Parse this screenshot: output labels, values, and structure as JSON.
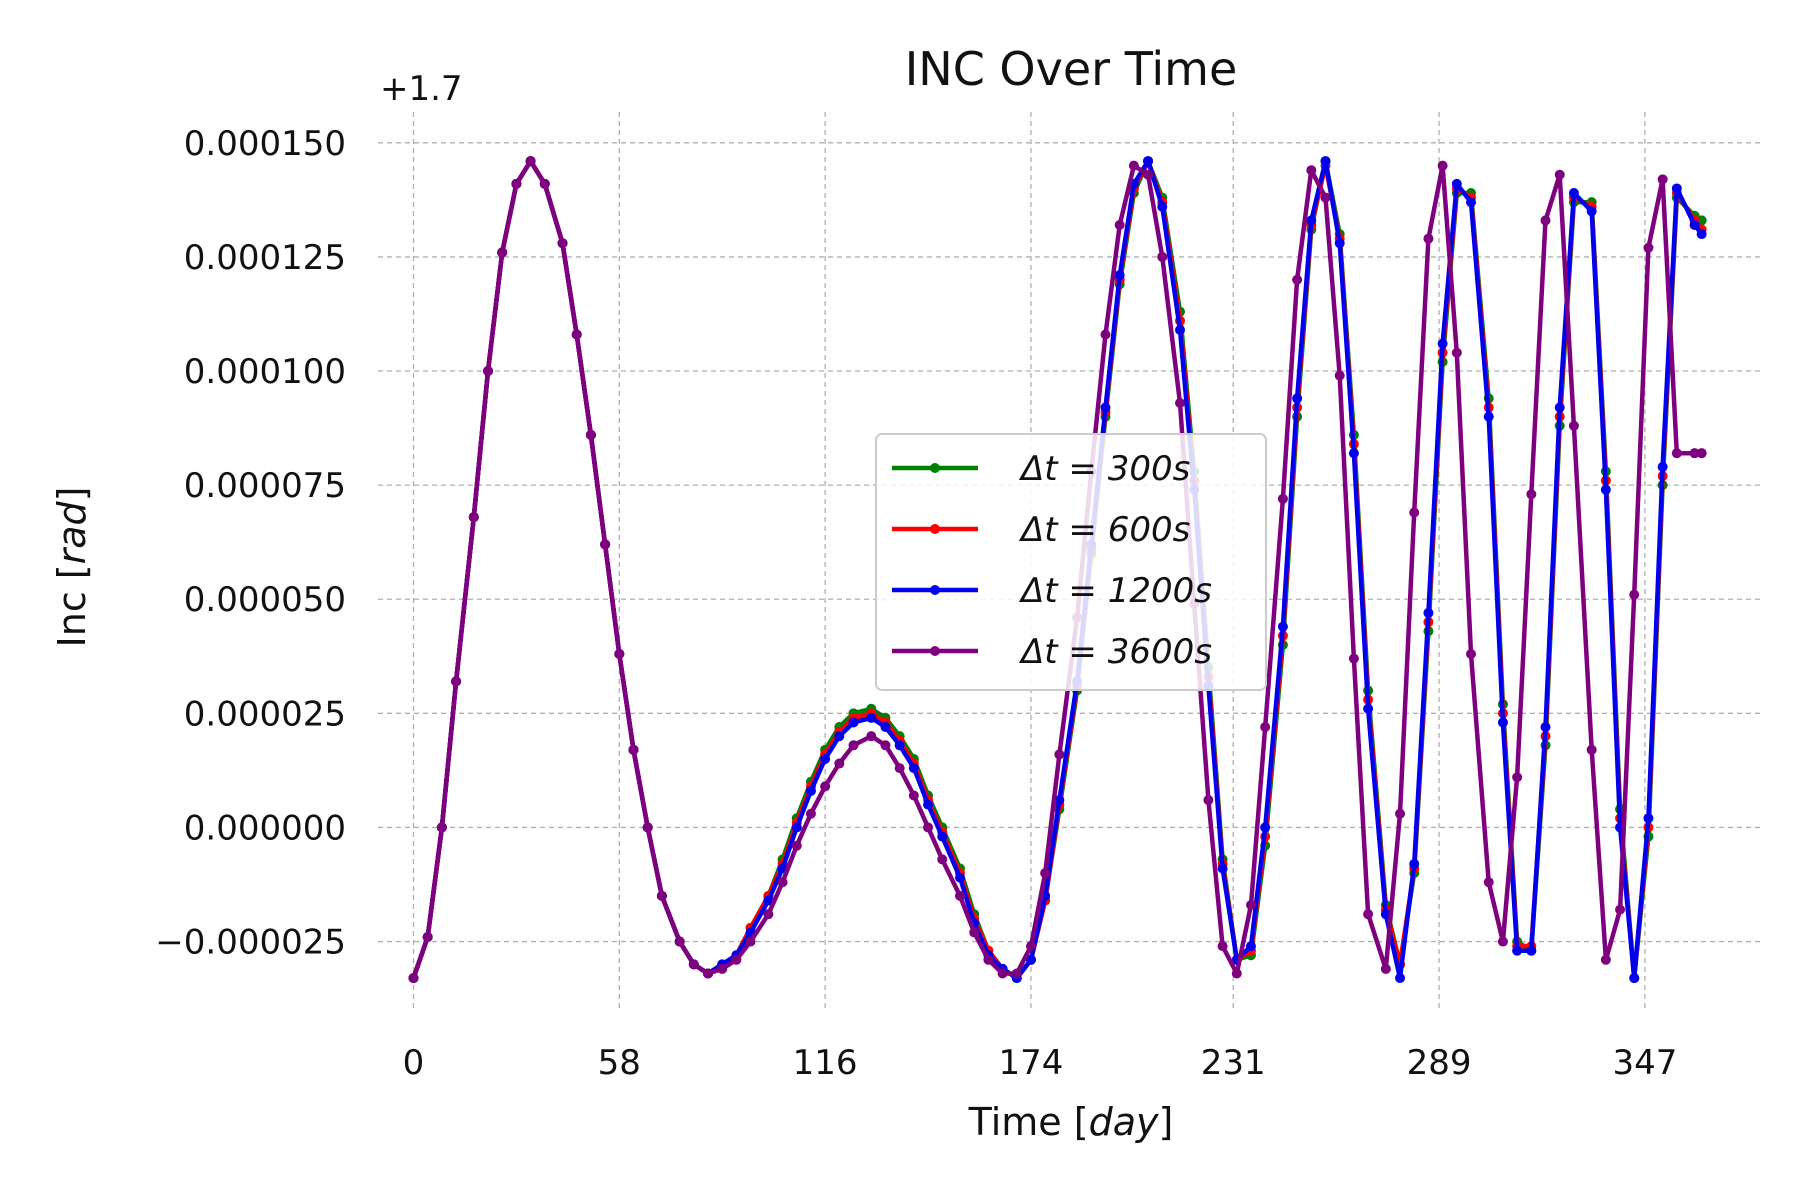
{
  "chart_data": {
    "type": "line",
    "title": "INC Over Time",
    "xlabel_prefix": "Time [",
    "xlabel_unit": "day",
    "xlabel_suffix": "]",
    "ylabel_prefix": "Inc [",
    "ylabel_unit": "rad",
    "ylabel_suffix": "]",
    "y_offset_label": "+1.7",
    "y_offset": 1.7,
    "x_ticks": [
      0,
      58,
      116,
      174,
      231,
      289,
      347
    ],
    "y_ticks": [
      -2.5e-05,
      0.0,
      2.5e-05,
      5e-05,
      7.5e-05,
      0.0001,
      0.000125,
      0.00015
    ],
    "y_tick_labels": [
      "−0.000025",
      "0.000000",
      "0.000025",
      "0.000050",
      "0.000075",
      "0.000100",
      "0.000125",
      "0.000150"
    ],
    "xlim": [
      -10,
      380
    ],
    "ylim": [
      -4e-05,
      0.000155
    ],
    "grid": true,
    "legend_position": "center",
    "series": [
      {
        "name": "Δt = 300s",
        "legend_label": "Δt = 300s",
        "color": "#008000",
        "x": [
          0,
          4,
          8,
          12,
          17,
          21,
          25,
          29,
          33,
          37,
          42,
          46,
          50,
          54,
          58,
          62,
          66,
          70,
          75,
          79,
          83,
          87,
          91,
          95,
          100,
          104,
          108,
          112,
          116,
          120,
          124,
          129,
          133,
          137,
          141,
          145,
          149,
          154,
          158,
          162,
          166,
          170,
          174,
          178,
          182,
          187,
          191,
          195,
          199,
          203,
          207,
          211,
          216,
          220,
          224,
          228,
          232,
          236,
          240,
          245,
          249,
          253,
          257,
          261,
          265,
          269,
          274,
          278,
          282,
          286,
          290,
          294,
          298,
          303,
          307,
          311,
          315,
          319,
          323,
          327,
          332,
          336,
          340,
          344,
          348,
          352,
          356,
          361,
          363
        ],
        "y": [
          -3.3e-05,
          -2.4e-05,
          0.0,
          3.2e-05,
          6.8e-05,
          0.0001,
          0.000126,
          0.000141,
          0.000146,
          0.000141,
          0.000128,
          0.000108,
          8.6e-05,
          6.2e-05,
          3.8e-05,
          1.7e-05,
          0.0,
          -1.5e-05,
          -2.5e-05,
          -3e-05,
          -3.2e-05,
          -3e-05,
          -2.8e-05,
          -2.2e-05,
          -1.5e-05,
          -7e-06,
          2e-06,
          1e-05,
          1.7e-05,
          2.2e-05,
          2.5e-05,
          2.6e-05,
          2.4e-05,
          2e-05,
          1.5e-05,
          7e-06,
          0.0,
          -9e-06,
          -1.9e-05,
          -2.7e-05,
          -3.1e-05,
          -3.3e-05,
          -2.9e-05,
          -1.6e-05,
          4e-06,
          3e-05,
          6e-05,
          9e-05,
          0.000119,
          0.000139,
          0.000146,
          0.000138,
          0.000113,
          7.8e-05,
          3.5e-05,
          -7e-06,
          -2.9e-05,
          -2.8e-05,
          -4e-06,
          4e-05,
          9e-05,
          0.000131,
          0.000146,
          0.00013,
          8.6e-05,
          3e-05,
          -1.7e-05,
          -3e-05,
          -1e-05,
          4.3e-05,
          0.000102,
          0.000139,
          0.000139,
          9.4e-05,
          2.7e-05,
          -2.5e-05,
          -2.7e-05,
          1.8e-05,
          8.8e-05,
          0.000137,
          0.000137,
          7.8e-05,
          4e-06,
          -3.3e-05,
          -2e-06,
          7.5e-05,
          0.000138,
          0.000134,
          0.000133
        ]
      },
      {
        "name": "Δt = 600s",
        "legend_label": "Δt = 600s",
        "color": "#ff0000",
        "x": [
          0,
          4,
          8,
          12,
          17,
          21,
          25,
          29,
          33,
          37,
          42,
          46,
          50,
          54,
          58,
          62,
          66,
          70,
          75,
          79,
          83,
          87,
          91,
          95,
          100,
          104,
          108,
          112,
          116,
          120,
          124,
          129,
          133,
          137,
          141,
          145,
          149,
          154,
          158,
          162,
          166,
          170,
          174,
          178,
          182,
          187,
          191,
          195,
          199,
          203,
          207,
          211,
          216,
          220,
          224,
          228,
          232,
          236,
          240,
          245,
          249,
          253,
          257,
          261,
          265,
          269,
          274,
          278,
          282,
          286,
          290,
          294,
          298,
          303,
          307,
          311,
          315,
          319,
          323,
          327,
          332,
          336,
          340,
          344,
          348,
          352,
          356,
          361,
          363
        ],
        "y": [
          -3.3e-05,
          -2.4e-05,
          0.0,
          3.2e-05,
          6.8e-05,
          0.0001,
          0.000126,
          0.000141,
          0.000146,
          0.000141,
          0.000128,
          0.000108,
          8.6e-05,
          6.2e-05,
          3.8e-05,
          1.7e-05,
          0.0,
          -1.5e-05,
          -2.5e-05,
          -3e-05,
          -3.2e-05,
          -3e-05,
          -2.8e-05,
          -2.2e-05,
          -1.5e-05,
          -8e-06,
          1e-06,
          9e-06,
          1.6e-05,
          2.1e-05,
          2.4e-05,
          2.5e-05,
          2.3e-05,
          1.9e-05,
          1.4e-05,
          6e-06,
          -1e-06,
          -1e-05,
          -2e-05,
          -2.7e-05,
          -3.1e-05,
          -3.3e-05,
          -2.9e-05,
          -1.6e-05,
          5e-06,
          3.1e-05,
          6.1e-05,
          9.1e-05,
          0.00012,
          0.00014,
          0.000146,
          0.000137,
          0.000111,
          7.6e-05,
          3.3e-05,
          -8e-06,
          -2.9e-05,
          -2.7e-05,
          -2e-06,
          4.2e-05,
          9.2e-05,
          0.000132,
          0.000145,
          0.000129,
          8.4e-05,
          2.8e-05,
          -1.8e-05,
          -3e-05,
          -9e-06,
          4.5e-05,
          0.000104,
          0.00014,
          0.000138,
          9.2e-05,
          2.5e-05,
          -2.6e-05,
          -2.6e-05,
          2e-05,
          9e-05,
          0.000138,
          0.000136,
          7.6e-05,
          2e-06,
          -3.3e-05,
          0.0,
          7.7e-05,
          0.000139,
          0.000133,
          0.000131
        ]
      },
      {
        "name": "Δt = 1200s",
        "legend_label": "Δt = 1200s",
        "color": "#0000ee",
        "x": [
          0,
          4,
          8,
          12,
          17,
          21,
          25,
          29,
          33,
          37,
          42,
          46,
          50,
          54,
          58,
          62,
          66,
          70,
          75,
          79,
          83,
          87,
          91,
          95,
          100,
          104,
          108,
          112,
          116,
          120,
          124,
          129,
          133,
          137,
          141,
          145,
          149,
          154,
          158,
          162,
          166,
          170,
          174,
          178,
          182,
          187,
          191,
          195,
          199,
          203,
          207,
          211,
          216,
          220,
          224,
          228,
          232,
          236,
          240,
          245,
          249,
          253,
          257,
          261,
          265,
          269,
          274,
          278,
          282,
          286,
          290,
          294,
          298,
          303,
          307,
          311,
          315,
          319,
          323,
          327,
          332,
          336,
          340,
          344,
          348,
          352,
          356,
          361,
          363
        ],
        "y": [
          -3.3e-05,
          -2.4e-05,
          0.0,
          3.2e-05,
          6.8e-05,
          0.0001,
          0.000126,
          0.000141,
          0.000146,
          0.000141,
          0.000128,
          0.000108,
          8.6e-05,
          6.2e-05,
          3.8e-05,
          1.7e-05,
          0.0,
          -1.5e-05,
          -2.5e-05,
          -3e-05,
          -3.2e-05,
          -3e-05,
          -2.8e-05,
          -2.3e-05,
          -1.6e-05,
          -9e-06,
          0.0,
          8e-06,
          1.5e-05,
          2e-05,
          2.3e-05,
          2.4e-05,
          2.2e-05,
          1.8e-05,
          1.3e-05,
          5e-06,
          -2e-06,
          -1.1e-05,
          -2.1e-05,
          -2.8e-05,
          -3.1e-05,
          -3.3e-05,
          -2.9e-05,
          -1.5e-05,
          6e-06,
          3.2e-05,
          6.2e-05,
          9.2e-05,
          0.000121,
          0.000141,
          0.000146,
          0.000136,
          0.000109,
          7.4e-05,
          3.1e-05,
          -9e-06,
          -2.9e-05,
          -2.6e-05,
          0.0,
          4.4e-05,
          9.4e-05,
          0.000133,
          0.000146,
          0.000128,
          8.2e-05,
          2.6e-05,
          -1.9e-05,
          -3.3e-05,
          -8e-06,
          4.7e-05,
          0.000106,
          0.000141,
          0.000137,
          9e-05,
          2.3e-05,
          -2.7e-05,
          -2.7e-05,
          2.2e-05,
          9.2e-05,
          0.000139,
          0.000135,
          7.4e-05,
          0.0,
          -3.3e-05,
          2e-06,
          7.9e-05,
          0.00014,
          0.000132,
          0.00013
        ]
      },
      {
        "name": "Δt = 3600s",
        "legend_label": "Δt = 3600s",
        "color": "#7f007f",
        "x": [
          0,
          4,
          8,
          12,
          17,
          21,
          25,
          29,
          33,
          37,
          42,
          46,
          50,
          54,
          58,
          62,
          66,
          70,
          75,
          79,
          83,
          87,
          91,
          95,
          100,
          104,
          108,
          112,
          116,
          120,
          124,
          129,
          133,
          137,
          141,
          145,
          149,
          154,
          158,
          162,
          166,
          170,
          174,
          178,
          182,
          187,
          191,
          195,
          199,
          203,
          207,
          211,
          216,
          220,
          224,
          228,
          232,
          236,
          240,
          245,
          249,
          253,
          257,
          261,
          265,
          269,
          274,
          278,
          282,
          286,
          290,
          294,
          298,
          303,
          307,
          311,
          315,
          319,
          323,
          327,
          332,
          336,
          340,
          344,
          348,
          352,
          356,
          361,
          363
        ],
        "y": [
          -3.3e-05,
          -2.4e-05,
          0.0,
          3.2e-05,
          6.8e-05,
          0.0001,
          0.000126,
          0.000141,
          0.000146,
          0.000141,
          0.000128,
          0.000108,
          8.6e-05,
          6.2e-05,
          3.8e-05,
          1.7e-05,
          0.0,
          -1.5e-05,
          -2.5e-05,
          -3e-05,
          -3.2e-05,
          -3.1e-05,
          -2.9e-05,
          -2.5e-05,
          -1.9e-05,
          -1.2e-05,
          -4e-06,
          3e-06,
          9e-06,
          1.4e-05,
          1.8e-05,
          2e-05,
          1.8e-05,
          1.3e-05,
          7e-06,
          0.0,
          -7e-06,
          -1.5e-05,
          -2.3e-05,
          -2.9e-05,
          -3.2e-05,
          -3.2e-05,
          -2.6e-05,
          -1e-05,
          1.6e-05,
          4.6e-05,
          7.8e-05,
          0.000108,
          0.000132,
          0.000145,
          0.000143,
          0.000125,
          9.3e-05,
          4.9e-05,
          6e-06,
          -2.6e-05,
          -3.2e-05,
          -1.7e-05,
          2.2e-05,
          7.2e-05,
          0.00012,
          0.000144,
          0.000138,
          9.9e-05,
          3.7e-05,
          -1.9e-05,
          -3.1e-05,
          3e-06,
          6.9e-05,
          0.000129,
          0.000145,
          0.000104,
          3.8e-05,
          -1.2e-05,
          -2.5e-05,
          1.1e-05,
          7.3e-05,
          0.000133,
          0.000143,
          8.8e-05,
          1.7e-05,
          -2.9e-05,
          -1.8e-05,
          5.1e-05,
          0.000127,
          0.000142,
          8.2e-05,
          8.2e-05,
          8.2e-05
        ]
      }
    ]
  }
}
